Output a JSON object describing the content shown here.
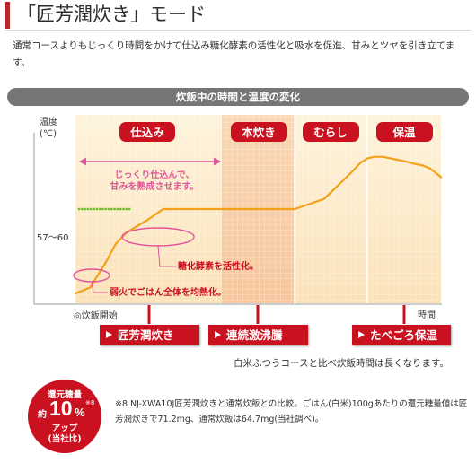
{
  "header": {
    "title": "「匠芳潤炊き」モード"
  },
  "intro": {
    "text": "通常コースよりもじっくり時間をかけて仕込み糖化酵素の活性化と吸水を促進、甘みとツヤを引き立てます。"
  },
  "band": {
    "title": "炊飯中の時間と温度の変化"
  },
  "chart_data": {
    "type": "line",
    "y_axis_label": "温度\n(℃)",
    "y_tick": "57～60",
    "x_start_label": "◎炊飯開始",
    "x_end_label": "時間",
    "phases": [
      "仕込み",
      "本炊き",
      "むらし",
      "保温"
    ],
    "annotations": {
      "slow_soak": "じっくり仕込んで、\n甘みを熟成させます。",
      "enzyme": "糖化酵素を活性化。",
      "low_heat": "弱火でごはん全体を均熱化。"
    },
    "series": [
      {
        "x": [
          0,
          4,
          8,
          11,
          14,
          20,
          24,
          36,
          50,
          60,
          68,
          75,
          78,
          80,
          82,
          84,
          86,
          88,
          90,
          93,
          95,
          97,
          100
        ],
        "y": [
          0,
          4,
          20,
          34,
          42,
          51,
          58,
          58,
          58,
          58,
          65,
          82,
          90,
          93,
          94,
          94,
          93,
          92,
          91,
          89,
          88,
          86,
          80
        ]
      }
    ],
    "colors": {
      "accent": "#c9111f",
      "highlight": "#e0569a",
      "curve": "#f3a11a",
      "dots": "#6fbf2c"
    }
  },
  "tags": [
    {
      "label": "匠芳潤炊き"
    },
    {
      "label": "連続激沸騰"
    },
    {
      "label": "たべごろ保温"
    }
  ],
  "note": {
    "text": "白米ふつうコースと比べ炊飯時間は長くなります。"
  },
  "badge": {
    "line1": "還元糖量",
    "prefix": "約",
    "number": "10",
    "unit": "%",
    "sup": "※8",
    "line3": "アップ",
    "line4": "(当社比)"
  },
  "footnote": {
    "text": "※8 NJ-XWA10J匠芳潤炊きと通常炊飯との比較。ごはん(白米)100gあたりの還元糖量値は匠芳潤炊きで71.2mg、通常炊飯は64.7mg(当社調べ)。"
  }
}
